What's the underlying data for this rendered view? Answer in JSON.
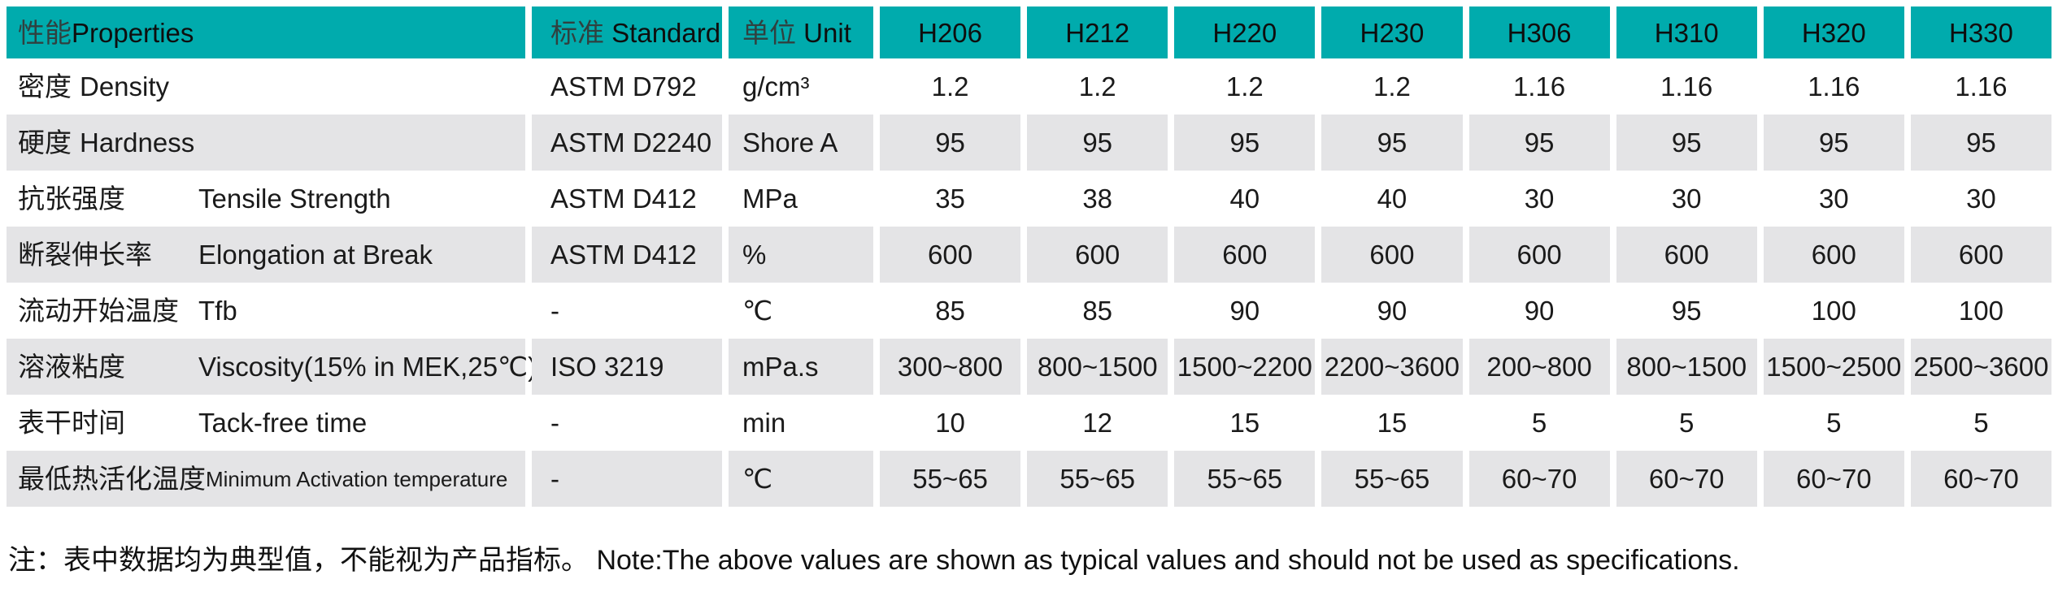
{
  "colors": {
    "header_teal": "#00ABAD",
    "row_gray": "#E4E4E6",
    "text": "#1A1A1A"
  },
  "table": {
    "header": {
      "properties_cn": "性能",
      "properties_en": "Properties",
      "standard_cn": "标准",
      "standard_en": "Standard",
      "unit_cn": "单位",
      "unit_en": "Unit",
      "products": [
        "H206",
        "H212",
        "H220",
        "H230",
        "H306",
        "H310",
        "H320",
        "H330"
      ]
    },
    "rows": [
      {
        "cn": "密度",
        "en": "Density",
        "standard": "ASTM D792",
        "unit": "g/cm³",
        "values": [
          "1.2",
          "1.2",
          "1.2",
          "1.2",
          "1.16",
          "1.16",
          "1.16",
          "1.16"
        ]
      },
      {
        "cn": "硬度",
        "en": "Hardness",
        "standard": "ASTM D2240",
        "unit": "Shore A",
        "values": [
          "95",
          "95",
          "95",
          "95",
          "95",
          "95",
          "95",
          "95"
        ]
      },
      {
        "cn": "抗张强度",
        "en": "Tensile Strength",
        "standard": "ASTM D412",
        "unit": "MPa",
        "values": [
          "35",
          "38",
          "40",
          "40",
          "30",
          "30",
          "30",
          "30"
        ]
      },
      {
        "cn": "断裂伸长率",
        "en": "Elongation at Break",
        "standard": "ASTM D412",
        "unit": "%",
        "values": [
          "600",
          "600",
          "600",
          "600",
          "600",
          "600",
          "600",
          "600"
        ]
      },
      {
        "cn": "流动开始温度",
        "en": "Tfb",
        "standard": "-",
        "unit": "℃",
        "values": [
          "85",
          "85",
          "90",
          "90",
          "90",
          "95",
          "100",
          "100"
        ]
      },
      {
        "cn": "溶液粘度",
        "en": "Viscosity(15% in MEK,25℃)",
        "standard": "ISO 3219",
        "unit": "mPa.s",
        "values": [
          "300~800",
          "800~1500",
          "1500~2200",
          "2200~3600",
          "200~800",
          "800~1500",
          "1500~2500",
          "2500~3600"
        ]
      },
      {
        "cn": "表干时间",
        "en": "Tack-free time",
        "standard": "-",
        "unit": "min",
        "values": [
          "10",
          "12",
          "15",
          "15",
          "5",
          "5",
          "5",
          "5"
        ]
      },
      {
        "cn": "最低热活化温度",
        "en": "Minimum Activation temperature",
        "standard": "-",
        "unit": "℃",
        "values": [
          "55~65",
          "55~65",
          "55~65",
          "55~65",
          "60~70",
          "60~70",
          "60~70",
          "60~70"
        ]
      }
    ]
  },
  "note": "注：表中数据均为典型值，不能视为产品指标。 Note:The above values are shown as typical values and should not be used as specifications."
}
